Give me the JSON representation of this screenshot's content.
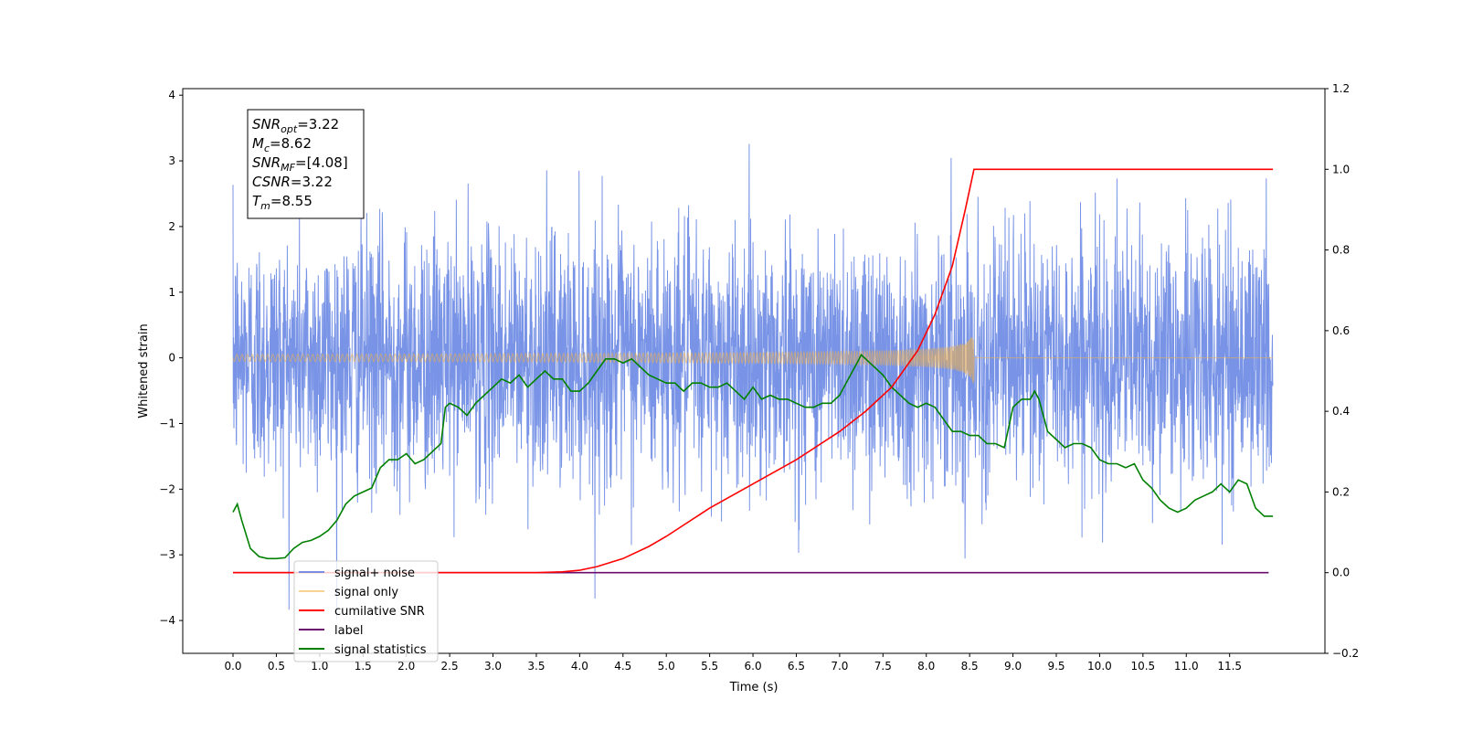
{
  "chart_data": {
    "type": "line",
    "xlabel": "Time (s)",
    "ylabel": "Whitened strain",
    "xlim": [
      -0.58,
      12.6
    ],
    "ylim": [
      -4.5,
      4.1
    ],
    "y2lim": [
      -0.2,
      1.2
    ],
    "x_ticks": [
      0.0,
      0.5,
      1.0,
      1.5,
      2.0,
      2.5,
      3.0,
      3.5,
      4.0,
      4.5,
      5.0,
      5.5,
      6.0,
      6.5,
      7.0,
      7.5,
      8.0,
      8.5,
      9.0,
      9.5,
      10.0,
      10.5,
      11.0,
      11.5
    ],
    "x_tick_labels": [
      "0.0",
      "0.5",
      "1.0",
      "1.5",
      "2.0",
      "2.5",
      "3.0",
      "3.5",
      "4.0",
      "4.5",
      "5.0",
      "5.5",
      "6.0",
      "6.5",
      "7.0",
      "7.5",
      "8.0",
      "8.5",
      "9.0",
      "9.5",
      "10.0",
      "10.5",
      "11.0",
      "11.5"
    ],
    "y_ticks": [
      -4,
      -3,
      -2,
      -1,
      0,
      1,
      2,
      3,
      4
    ],
    "y_tick_labels": [
      "−4",
      "−3",
      "−2",
      "−1",
      "0",
      "1",
      "2",
      "3",
      "4"
    ],
    "y2_ticks": [
      -0.2,
      0.0,
      0.2,
      0.4,
      0.6,
      0.8,
      1.0,
      1.2
    ],
    "y2_tick_labels": [
      "−0.2",
      "0.0",
      "0.2",
      "0.4",
      "0.6",
      "0.8",
      "1.0",
      "1.2"
    ],
    "grid": false,
    "legend_position": "lower-left",
    "annotation": {
      "lines": [
        {
          "base": "SNR",
          "sub": "opt",
          "value": "=3.22"
        },
        {
          "base": "M",
          "sub": "c",
          "value": "=8.62"
        },
        {
          "base": "SNR",
          "sub": "MF",
          "value": "=[4.08]"
        },
        {
          "base": "CSNR",
          "sub": "",
          "value": "=3.22"
        },
        {
          "base": "T",
          "sub": "m",
          "value": "=8.55"
        }
      ]
    },
    "series": [
      {
        "name": "signal+ noise",
        "axis": "left",
        "color": "#5b7de0",
        "kind": "noise",
        "x_range": [
          0,
          12.0
        ],
        "approx_std": 0.95,
        "approx_range": [
          -4.1,
          3.7
        ]
      },
      {
        "name": "signal only",
        "axis": "left",
        "color": "#f5b041",
        "kind": "chirp",
        "x_range": [
          0,
          12.0
        ],
        "merger_time": 8.55,
        "peak_amplitude": 0.45
      },
      {
        "name": "cumilative SNR",
        "axis": "right",
        "color": "#ff0000",
        "x": [
          0,
          3.5,
          3.8,
          4.0,
          4.2,
          4.5,
          4.8,
          5.0,
          5.5,
          6.0,
          6.5,
          7.0,
          7.3,
          7.6,
          7.9,
          8.1,
          8.3,
          8.45,
          8.55,
          12.0
        ],
        "y": [
          0.0,
          0.0,
          0.002,
          0.006,
          0.015,
          0.035,
          0.065,
          0.09,
          0.16,
          0.22,
          0.28,
          0.35,
          0.4,
          0.46,
          0.55,
          0.64,
          0.76,
          0.9,
          1.0,
          1.0
        ]
      },
      {
        "name": "label",
        "axis": "right",
        "color": "#6a0a6a",
        "x": [
          0,
          11.95
        ],
        "y": [
          0.0,
          0.0
        ]
      },
      {
        "name": "signal statistics",
        "axis": "right",
        "color": "#008000",
        "x": [
          0.0,
          0.05,
          0.1,
          0.2,
          0.3,
          0.4,
          0.5,
          0.6,
          0.7,
          0.8,
          0.9,
          1.0,
          1.1,
          1.2,
          1.3,
          1.4,
          1.5,
          1.6,
          1.7,
          1.8,
          1.9,
          2.0,
          2.1,
          2.2,
          2.3,
          2.4,
          2.45,
          2.5,
          2.6,
          2.7,
          2.8,
          2.9,
          3.0,
          3.1,
          3.2,
          3.3,
          3.4,
          3.5,
          3.6,
          3.7,
          3.8,
          3.9,
          4.0,
          4.1,
          4.2,
          4.3,
          4.4,
          4.5,
          4.6,
          4.7,
          4.8,
          4.9,
          5.0,
          5.1,
          5.2,
          5.3,
          5.4,
          5.5,
          5.6,
          5.7,
          5.8,
          5.9,
          6.0,
          6.1,
          6.2,
          6.3,
          6.4,
          6.5,
          6.6,
          6.7,
          6.8,
          6.9,
          7.0,
          7.1,
          7.2,
          7.25,
          7.3,
          7.4,
          7.5,
          7.6,
          7.7,
          7.8,
          7.9,
          8.0,
          8.1,
          8.2,
          8.3,
          8.4,
          8.5,
          8.6,
          8.7,
          8.8,
          8.9,
          9.0,
          9.1,
          9.2,
          9.25,
          9.3,
          9.4,
          9.5,
          9.6,
          9.7,
          9.8,
          9.9,
          10.0,
          10.1,
          10.2,
          10.3,
          10.4,
          10.5,
          10.6,
          10.7,
          10.8,
          10.9,
          11.0,
          11.1,
          11.2,
          11.3,
          11.4,
          11.5,
          11.6,
          11.7,
          11.8,
          11.9,
          12.0
        ],
        "y": [
          0.15,
          0.17,
          0.13,
          0.06,
          0.04,
          0.035,
          0.035,
          0.037,
          0.06,
          0.075,
          0.08,
          0.09,
          0.105,
          0.13,
          0.17,
          0.19,
          0.2,
          0.21,
          0.26,
          0.28,
          0.28,
          0.295,
          0.27,
          0.28,
          0.3,
          0.32,
          0.41,
          0.42,
          0.41,
          0.39,
          0.42,
          0.44,
          0.46,
          0.48,
          0.47,
          0.49,
          0.46,
          0.48,
          0.5,
          0.48,
          0.48,
          0.45,
          0.45,
          0.47,
          0.5,
          0.53,
          0.53,
          0.52,
          0.53,
          0.51,
          0.49,
          0.48,
          0.47,
          0.47,
          0.45,
          0.47,
          0.47,
          0.46,
          0.46,
          0.47,
          0.45,
          0.43,
          0.46,
          0.43,
          0.44,
          0.43,
          0.43,
          0.42,
          0.41,
          0.41,
          0.42,
          0.42,
          0.44,
          0.48,
          0.52,
          0.54,
          0.53,
          0.51,
          0.49,
          0.46,
          0.44,
          0.42,
          0.41,
          0.42,
          0.41,
          0.38,
          0.35,
          0.35,
          0.34,
          0.34,
          0.32,
          0.32,
          0.31,
          0.41,
          0.43,
          0.43,
          0.45,
          0.43,
          0.35,
          0.33,
          0.31,
          0.32,
          0.32,
          0.31,
          0.28,
          0.27,
          0.27,
          0.26,
          0.27,
          0.23,
          0.21,
          0.18,
          0.16,
          0.15,
          0.16,
          0.18,
          0.19,
          0.2,
          0.22,
          0.2,
          0.23,
          0.22,
          0.16,
          0.14,
          0.14
        ]
      }
    ]
  }
}
